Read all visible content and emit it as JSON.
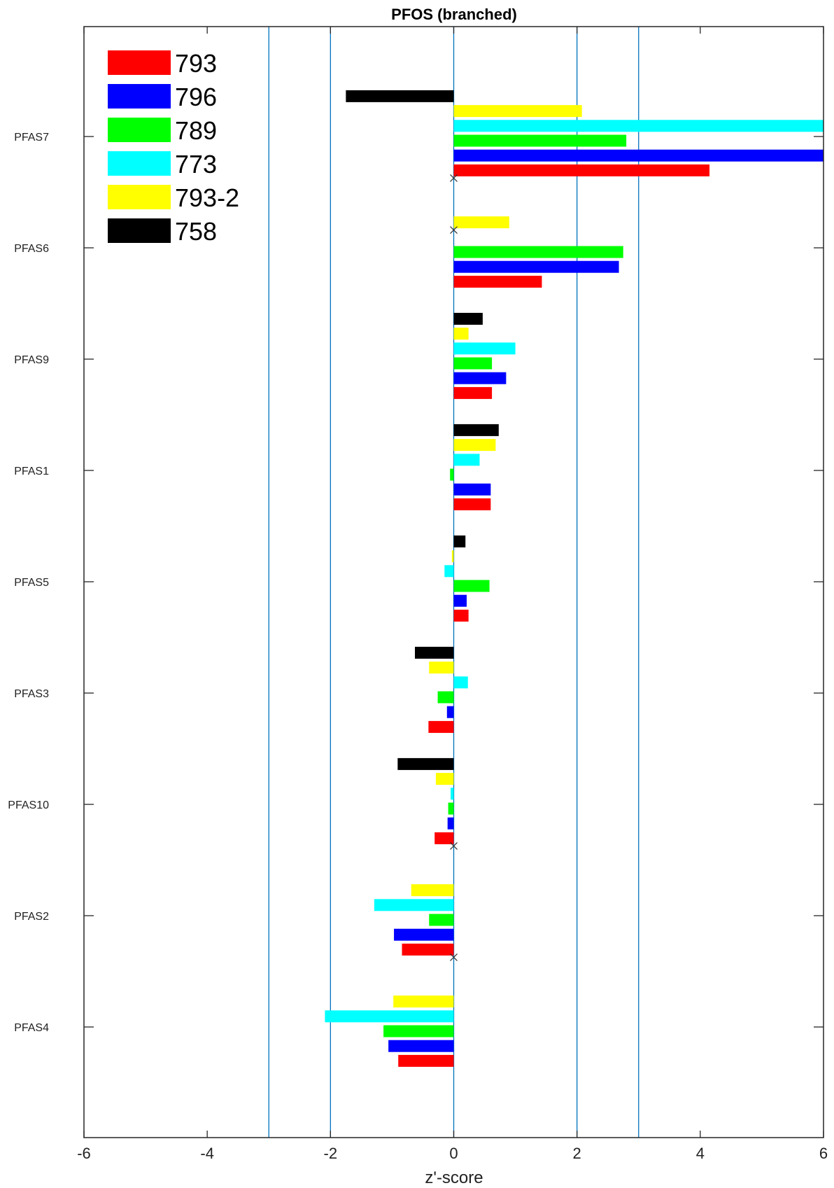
{
  "chart_data": {
    "type": "bar",
    "orientation": "horizontal",
    "title": "PFOS (branched)",
    "xlabel": "z'-score",
    "ylabel": "",
    "xlim": [
      -6,
      6
    ],
    "xticks": [
      "-6",
      "-4",
      "-2",
      "0",
      "2",
      "4",
      "6"
    ],
    "reference_lines": [
      -3,
      -2,
      2,
      3
    ],
    "categories": [
      "PFAS7",
      "PFAS6",
      "PFAS9",
      "PFAS1",
      "PFAS5",
      "PFAS3",
      "PFAS10",
      "PFAS2",
      "PFAS4"
    ],
    "series": [
      {
        "name": "793",
        "color": "#ff0000",
        "values": [
          4.15,
          1.43,
          0.62,
          0.6,
          0.24,
          -0.41,
          -0.31,
          -0.84,
          -0.9
        ]
      },
      {
        "name": "796",
        "color": "#0000ff",
        "values": [
          6.2,
          2.68,
          0.85,
          0.6,
          0.21,
          -0.11,
          -0.1,
          -0.97,
          -1.06
        ]
      },
      {
        "name": "789",
        "color": "#00ff00",
        "values": [
          2.8,
          2.75,
          0.62,
          -0.06,
          0.58,
          -0.26,
          -0.09,
          -0.4,
          -1.14
        ]
      },
      {
        "name": "773",
        "color": "#00ffff",
        "values": [
          6.2,
          null,
          1.0,
          0.42,
          -0.15,
          0.23,
          -0.05,
          -1.29,
          -2.09
        ]
      },
      {
        "name": "793-2",
        "color": "#ffff00",
        "values": [
          2.08,
          0.9,
          0.24,
          0.68,
          -0.03,
          -0.4,
          -0.29,
          -0.69,
          -0.98
        ]
      },
      {
        "name": "758",
        "color": "#000000",
        "values": [
          -1.75,
          null,
          0.47,
          0.73,
          0.19,
          -0.63,
          -0.91,
          null,
          null
        ]
      }
    ],
    "missing_markers": [
      {
        "category": "PFAS7",
        "series": "793"
      },
      {
        "category": "PFAS6",
        "series": "793-2"
      },
      {
        "category": "PFAS10",
        "series": "793"
      },
      {
        "category": "PFAS2",
        "series": "793"
      }
    ],
    "legend_position": "top-left",
    "grid": false
  }
}
